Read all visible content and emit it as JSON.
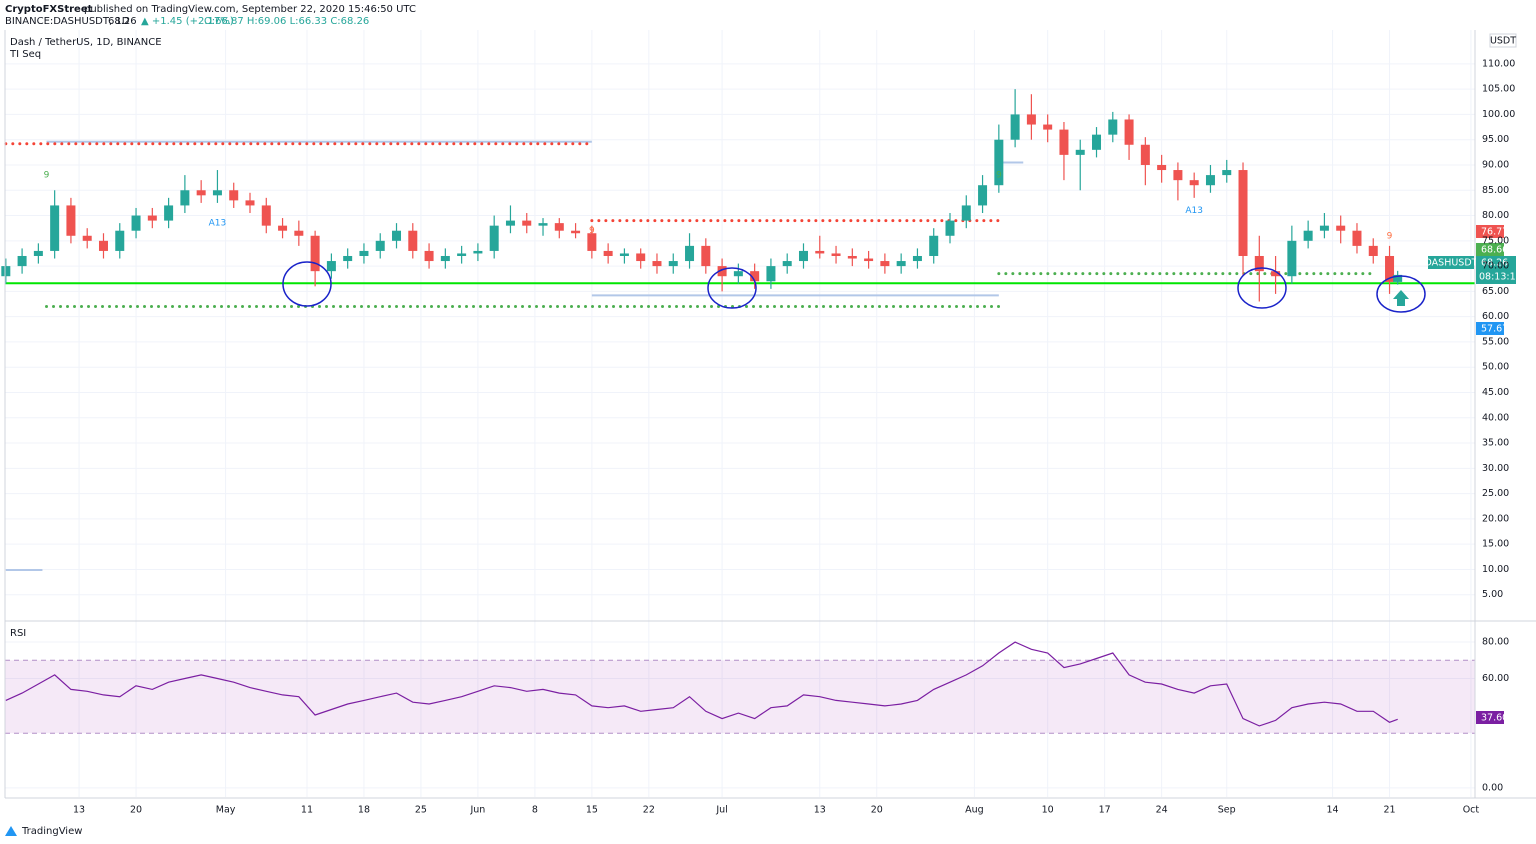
{
  "chart_data": {
    "type": "candlestick",
    "publisher": "CryptoFXStreet",
    "published": "published on TradingView.com, September 22, 2020 15:46:50 UTC",
    "symbol_line": "BINANCE:DASHUSDT, 1D",
    "last": "68.26",
    "change": "▲ +1.45 (+2.17%)",
    "ohlc": "O:66.87 H:69.06 L:66.33 C:68.26",
    "title": "Dash / TetherUS, 1D, BINANCE",
    "subtitle": "TI Seq",
    "currency": "USDT",
    "symbol": "DASHUSDT",
    "countdown": "08:13:11",
    "brand": "TradingView",
    "up_color": "#26a69a",
    "down_color": "#ef5350",
    "grid": true,
    "x": [
      -9,
      -7,
      -5,
      -3,
      -1,
      1,
      3,
      5,
      7,
      9,
      11,
      13,
      15,
      17,
      19,
      21,
      23,
      25,
      27,
      29,
      31,
      33,
      35,
      37,
      39,
      41,
      43,
      45,
      47,
      49,
      51,
      53,
      55,
      57,
      59,
      61,
      63,
      65,
      67,
      69,
      71,
      73,
      75,
      77,
      79,
      81,
      83,
      85,
      87,
      89,
      91,
      93,
      95,
      97,
      99,
      101,
      103,
      105,
      107,
      109,
      111,
      113,
      115,
      117,
      119,
      121,
      123,
      125,
      127,
      129,
      131,
      133,
      135,
      137,
      139,
      141,
      143,
      145,
      147,
      149,
      151,
      153,
      155,
      157,
      159,
      161,
      162
    ],
    "open": [
      68,
      70,
      72,
      73,
      82,
      76,
      75,
      73,
      77,
      80,
      79,
      82,
      85,
      84,
      85,
      83,
      82,
      78,
      77,
      76,
      69,
      71,
      72,
      73,
      75,
      77,
      73,
      71,
      72,
      72.5,
      73,
      78,
      79,
      78,
      78.5,
      77,
      76.5,
      73,
      72,
      72.5,
      71,
      70,
      71,
      74,
      70,
      68,
      69,
      67,
      70,
      71,
      73,
      72.5,
      72,
      71.5,
      71,
      70,
      71,
      72,
      76,
      79,
      82,
      86,
      95,
      100,
      98,
      97,
      92,
      93,
      96,
      99,
      94,
      90,
      89,
      87,
      86,
      88,
      89,
      72,
      69,
      68,
      75,
      77,
      78,
      77,
      74,
      72,
      66.87
    ],
    "high": [
      71.5,
      73.5,
      74.5,
      85,
      83.5,
      77.5,
      76.5,
      78.5,
      81.5,
      81.5,
      83.5,
      88,
      87,
      89,
      86.5,
      84.5,
      83.5,
      79.5,
      79,
      77,
      72.5,
      73.5,
      74.5,
      76.5,
      78.5,
      78.5,
      74.5,
      73.5,
      74,
      74.5,
      80,
      82,
      80.5,
      79.5,
      79.5,
      78.5,
      78,
      74.5,
      73.5,
      73.5,
      72.5,
      72.5,
      76.5,
      75.5,
      71.5,
      70.5,
      70.5,
      71.5,
      72.5,
      74.5,
      76,
      74,
      73.5,
      73,
      72.5,
      72.5,
      73.5,
      77.5,
      80.5,
      84,
      88,
      98,
      105,
      104,
      100,
      98.5,
      95,
      97.5,
      100.5,
      100,
      95.5,
      92,
      90.5,
      88.5,
      90,
      91,
      90.5,
      76,
      72,
      78,
      79,
      80.5,
      80,
      78.5,
      75.5,
      74,
      69.06
    ],
    "low": [
      66.5,
      68.5,
      70.5,
      71.5,
      74.5,
      73.5,
      71.5,
      71.5,
      75.5,
      77.5,
      77.5,
      80.5,
      82.5,
      82.5,
      81.5,
      80.5,
      76.5,
      75.5,
      74,
      66,
      67.5,
      69.5,
      70.5,
      71.5,
      73.5,
      71.5,
      69.5,
      69.5,
      70.5,
      71,
      71.5,
      76.5,
      76.5,
      76,
      75.5,
      75.5,
      71.5,
      70.5,
      70.5,
      69.5,
      68.5,
      68.5,
      69.5,
      68.5,
      65,
      66.5,
      65.5,
      65.5,
      68.5,
      69.5,
      71.5,
      70.5,
      70,
      69.5,
      68.5,
      68.5,
      69.5,
      70.5,
      74.5,
      77.5,
      80.5,
      84.5,
      93.5,
      95,
      94.5,
      87,
      85,
      91.5,
      94.5,
      91,
      86,
      86.5,
      83,
      83.5,
      84.5,
      86.5,
      68,
      63,
      64.5,
      66.5,
      73.5,
      75.5,
      74.5,
      72.5,
      70.5,
      64.5,
      66.33
    ],
    "close": [
      70,
      72,
      73,
      82,
      76,
      75,
      73,
      77,
      80,
      79,
      82,
      85,
      84,
      85,
      83,
      82,
      78,
      77,
      76,
      69,
      71,
      72,
      73,
      75,
      77,
      73,
      71,
      72,
      72.5,
      73,
      78,
      79,
      78,
      78.5,
      77,
      76.5,
      73,
      72,
      72.5,
      71,
      70,
      71,
      74,
      70,
      68,
      69,
      67,
      70,
      71,
      73,
      72.5,
      72,
      71.5,
      71,
      70,
      71,
      72,
      76,
      79,
      82,
      86,
      95,
      100,
      98,
      97,
      92,
      93,
      96,
      99,
      94,
      90,
      89,
      87,
      86,
      88,
      89,
      72,
      69,
      68,
      75,
      77,
      78,
      77,
      74,
      72,
      66.87,
      68.26
    ],
    "xlim": [
      -9.1,
      171.5
    ],
    "xticks": [
      {
        "value": 0,
        "label": "13"
      },
      {
        "value": 7,
        "label": "20"
      },
      {
        "value": 18,
        "label": "May"
      },
      {
        "value": 28,
        "label": "11"
      },
      {
        "value": 35,
        "label": "18"
      },
      {
        "value": 42,
        "label": "25"
      },
      {
        "value": 49,
        "label": "Jun"
      },
      {
        "value": 56,
        "label": "8"
      },
      {
        "value": 63,
        "label": "15"
      },
      {
        "value": 70,
        "label": "22"
      },
      {
        "value": 79,
        "label": "Jul"
      },
      {
        "value": 91,
        "label": "13"
      },
      {
        "value": 98,
        "label": "20"
      },
      {
        "value": 110,
        "label": "Aug"
      },
      {
        "value": 119,
        "label": "10"
      },
      {
        "value": 126,
        "label": "17"
      },
      {
        "value": 133,
        "label": "24"
      },
      {
        "value": 141,
        "label": "Sep"
      },
      {
        "value": 154,
        "label": "14"
      },
      {
        "value": 161,
        "label": "21"
      },
      {
        "value": 171,
        "label": "Oct"
      }
    ],
    "ylim": [
      0,
      116.7
    ],
    "yticks": [
      {
        "value": 5,
        "label": "5.00"
      },
      {
        "value": 10,
        "label": "10.00"
      },
      {
        "value": 15,
        "label": "15.00"
      },
      {
        "value": 20,
        "label": "20.00"
      },
      {
        "value": 25,
        "label": "25.00"
      },
      {
        "value": 30,
        "label": "30.00"
      },
      {
        "value": 35,
        "label": "35.00"
      },
      {
        "value": 40,
        "label": "40.00"
      },
      {
        "value": 45,
        "label": "45.00"
      },
      {
        "value": 50,
        "label": "50.00"
      },
      {
        "value": 55,
        "label": "55.00"
      },
      {
        "value": 60,
        "label": "60.00"
      },
      {
        "value": 65,
        "label": "65.00"
      },
      {
        "value": 70,
        "label": "70.00"
      },
      {
        "value": 75,
        "label": "75.00"
      },
      {
        "value": 80,
        "label": "80.00"
      },
      {
        "value": 85,
        "label": "85.00"
      },
      {
        "value": 90,
        "label": "90.00"
      },
      {
        "value": 95,
        "label": "95.00"
      },
      {
        "value": 100,
        "label": "100.00"
      },
      {
        "value": 105,
        "label": "105.00"
      },
      {
        "value": 110,
        "label": "110.00"
      }
    ],
    "levels": [
      {
        "value": 66.6,
        "from": -9.1,
        "to": 171.5,
        "color": "#00e600",
        "style": "solid"
      },
      {
        "value": 94.6,
        "from": -4,
        "to": 63,
        "color": "#b2c7e8",
        "style": "solid"
      },
      {
        "value": 94.2,
        "from": -9,
        "to": 63,
        "color": "#f44336",
        "style": "dotted"
      },
      {
        "value": 79,
        "from": 63,
        "to": 113,
        "color": "#f44336",
        "style": "dotted"
      },
      {
        "value": 64.2,
        "from": 63,
        "to": 113,
        "color": "#b2c7e8",
        "style": "solid"
      },
      {
        "value": 62,
        "from": -4,
        "to": 113,
        "color": "#4caf50",
        "style": "dotted"
      },
      {
        "value": 68.5,
        "from": 113,
        "to": 159,
        "color": "#4caf50",
        "style": "dotted"
      },
      {
        "value": 90.5,
        "from": 113,
        "to": 116,
        "color": "#b2c7e8",
        "style": "solid"
      },
      {
        "value": 9.9,
        "from": -9,
        "to": -4.5,
        "color": "#b2c7e8",
        "style": "solid"
      }
    ],
    "annotations": [
      {
        "text": "9",
        "x": -4,
        "y": 88,
        "color": "#4caf50"
      },
      {
        "text": "A13",
        "x": 17,
        "y": 78.5,
        "color": "#2196f3"
      },
      {
        "text": "9",
        "x": 63,
        "y": 77,
        "color": "#ff7043"
      },
      {
        "text": "9",
        "x": 113,
        "y": 88,
        "color": "#4caf50"
      },
      {
        "text": "A13",
        "x": 137,
        "y": 81,
        "color": "#2196f3"
      },
      {
        "text": "9",
        "x": 161,
        "y": 76,
        "color": "#ff7043"
      }
    ],
    "price_labels": [
      76.77,
      68.66,
      68.26,
      57.67
    ],
    "rsi": {
      "label": "RSI",
      "color": "#7b1fa2",
      "band": [
        30,
        70
      ],
      "ylim": [
        -5,
        91
      ],
      "yticks": [
        {
          "value": 80,
          "label": "80.00"
        },
        {
          "value": 60,
          "label": "60.00"
        },
        {
          "value": 0,
          "label": "0.00"
        }
      ],
      "values": [
        48,
        52,
        57,
        62,
        54,
        53,
        51,
        50,
        56,
        54,
        58,
        60,
        62,
        60,
        58,
        55,
        53,
        51,
        50,
        40,
        43,
        46,
        48,
        50,
        52,
        47,
        46,
        48,
        50,
        53,
        56,
        55,
        53,
        54,
        52,
        51,
        45,
        44,
        45,
        42,
        43,
        44,
        50,
        42,
        38,
        41,
        38,
        44,
        45,
        51,
        50,
        48,
        47,
        46,
        45,
        46,
        48,
        54,
        58,
        62,
        67,
        74,
        80,
        76,
        74,
        66,
        68,
        71,
        74,
        62,
        58,
        57,
        54,
        52,
        56,
        57,
        38,
        34,
        37,
        44,
        46,
        47,
        46,
        42,
        42,
        36,
        37.6
      ],
      "last": {
        "value": 37.6,
        "label": "37.60"
      }
    }
  }
}
